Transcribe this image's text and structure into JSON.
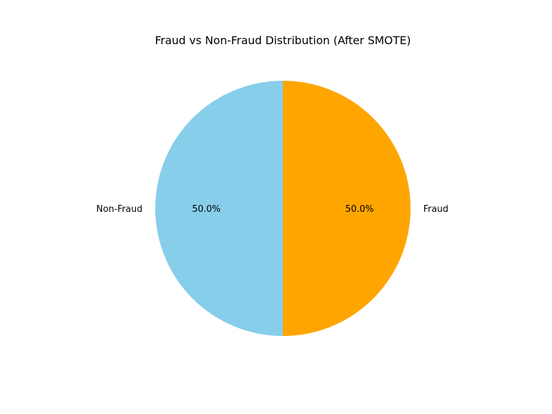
{
  "chart_data": {
    "type": "pie",
    "title": "Fraud vs Non-Fraud Distribution (After SMOTE)",
    "start_angle_deg": 90,
    "direction": "counterclockwise",
    "slices": [
      {
        "label": "Non-Fraud",
        "value": 50.0,
        "pct_label": "50.0%",
        "color": "#87CEEB"
      },
      {
        "label": "Fraud",
        "value": 50.0,
        "pct_label": "50.0%",
        "color": "#FFA500"
      }
    ],
    "legend": "none"
  }
}
